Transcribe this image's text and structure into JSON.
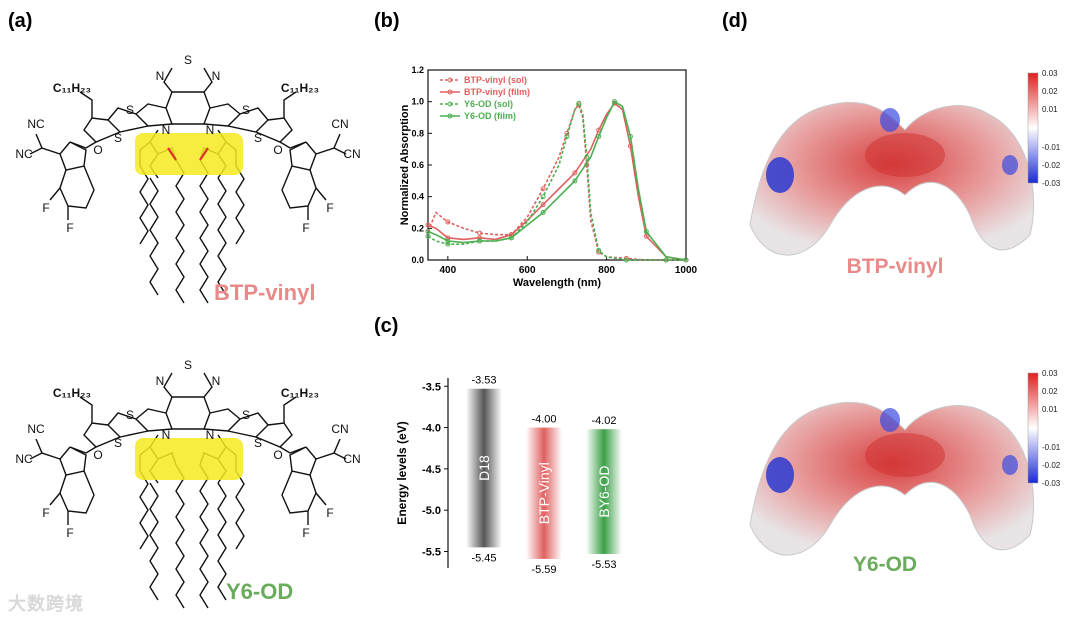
{
  "panels": {
    "a": "(a)",
    "b": "(b)",
    "c": "(c)",
    "d": "(d)"
  },
  "molecules": {
    "top": {
      "name": "BTP-vinyl",
      "color": "#e98a8a",
      "atoms": {
        "S_top": "S",
        "N_left": "N",
        "N_right": "N",
        "C11H23_left": "C₁₁H₂₃",
        "C11H23_right": "C₁₁H₂₃",
        "S_l1": "S",
        "S_l2": "S",
        "S_r1": "S",
        "S_r2": "S",
        "Nc_l": "N",
        "Nc_r": "N",
        "NC_l1": "NC",
        "NC_l2": "NC",
        "CN_r1": "CN",
        "CN_r2": "CN",
        "O_l": "O",
        "O_r": "O",
        "F_l1": "F",
        "F_l2": "F",
        "F_r1": "F",
        "F_r2": "F"
      }
    },
    "bottom": {
      "name": "Y6-OD",
      "color": "#6aab5c",
      "atoms": {
        "S_top": "S",
        "N_left": "N",
        "N_right": "N",
        "C11H23_left": "C₁₁H₂₃",
        "C11H23_right": "C₁₁H₂₃",
        "S_l1": "S",
        "S_l2": "S",
        "S_r1": "S",
        "S_r2": "S",
        "Nc_l": "N",
        "Nc_r": "N",
        "NC_l1": "NC",
        "NC_l2": "NC",
        "CN_r1": "CN",
        "CN_r2": "CN",
        "O_l": "O",
        "O_r": "O",
        "F_l1": "F",
        "F_l2": "F",
        "F_r1": "F",
        "F_r2": "F"
      }
    }
  },
  "chart_data": [
    {
      "type": "line",
      "xlabel": "Wavelength (nm)",
      "ylabel": "Normalized Absorption",
      "xlim": [
        350,
        1000
      ],
      "ylim": [
        0,
        1.2
      ],
      "xticks": [
        400,
        600,
        800,
        1000
      ],
      "yticks": [
        0.0,
        0.2,
        0.4,
        0.6,
        0.8,
        1.0,
        1.2
      ],
      "legend_position": "top-left",
      "series": [
        {
          "name": "BTP-vinyl (sol)",
          "color": "#e06060",
          "style": "dash",
          "x": [
            350,
            370,
            400,
            440,
            480,
            520,
            560,
            600,
            640,
            680,
            700,
            720,
            730,
            740,
            750,
            760,
            780,
            800,
            850,
            900,
            950,
            1000
          ],
          "y": [
            0.18,
            0.3,
            0.24,
            0.2,
            0.17,
            0.16,
            0.16,
            0.27,
            0.45,
            0.65,
            0.8,
            0.95,
            0.98,
            0.9,
            0.6,
            0.25,
            0.05,
            0.02,
            0.01,
            0.0,
            0.0,
            0.0
          ]
        },
        {
          "name": "BTP-vinyl (film)",
          "color": "#e06060",
          "style": "solid",
          "x": [
            350,
            370,
            400,
            440,
            480,
            520,
            560,
            600,
            640,
            680,
            720,
            760,
            780,
            800,
            820,
            840,
            860,
            880,
            900,
            950,
            1000
          ],
          "y": [
            0.22,
            0.2,
            0.14,
            0.13,
            0.14,
            0.13,
            0.16,
            0.25,
            0.35,
            0.45,
            0.55,
            0.7,
            0.82,
            0.92,
            0.99,
            0.95,
            0.72,
            0.4,
            0.15,
            0.02,
            0.0
          ]
        },
        {
          "name": "Y6-OD (sol)",
          "color": "#4caf50",
          "style": "dash",
          "x": [
            350,
            370,
            400,
            440,
            480,
            520,
            560,
            600,
            640,
            680,
            700,
            720,
            730,
            740,
            750,
            760,
            780,
            800,
            850,
            900,
            950,
            1000
          ],
          "y": [
            0.15,
            0.12,
            0.1,
            0.1,
            0.12,
            0.12,
            0.14,
            0.24,
            0.4,
            0.6,
            0.78,
            0.95,
            0.99,
            0.92,
            0.65,
            0.3,
            0.06,
            0.02,
            0.0,
            0.0,
            0.0,
            0.0
          ]
        },
        {
          "name": "Y6-OD (film)",
          "color": "#4caf50",
          "style": "solid",
          "x": [
            350,
            370,
            400,
            440,
            480,
            520,
            560,
            600,
            640,
            680,
            720,
            760,
            780,
            800,
            820,
            840,
            860,
            880,
            900,
            950,
            1000
          ],
          "y": [
            0.18,
            0.16,
            0.12,
            0.11,
            0.12,
            0.12,
            0.14,
            0.22,
            0.3,
            0.4,
            0.5,
            0.65,
            0.78,
            0.9,
            1.0,
            0.97,
            0.78,
            0.45,
            0.18,
            0.02,
            0.0
          ]
        }
      ]
    },
    {
      "type": "bar",
      "ylabel": "Energy levels (eV)",
      "ylim": [
        -5.7,
        -3.4
      ],
      "yticks": [
        -3.5,
        -4.0,
        -4.5,
        -5.0,
        -5.5
      ],
      "categories": [
        "D18",
        "BTP-Vinyl",
        "BY6-OD"
      ],
      "lumo": [
        -3.53,
        -4.0,
        -4.02
      ],
      "homo": [
        -5.45,
        -5.59,
        -5.53
      ],
      "lumo_labels": [
        "-3.53",
        "-4.00",
        "-4.02"
      ],
      "homo_labels": [
        "-5.45",
        "-5.59",
        "-5.53"
      ],
      "colors": [
        "#555555",
        "#e06060",
        "#3aa047"
      ]
    }
  ],
  "esp": {
    "colorbar_ticks": [
      "0.03",
      "0.02",
      "0.01",
      "-0.01",
      "-0.02",
      "-0.03"
    ],
    "top_label": "BTP-vinyl",
    "bottom_label": "Y6-OD"
  },
  "watermark": "大数跨境"
}
